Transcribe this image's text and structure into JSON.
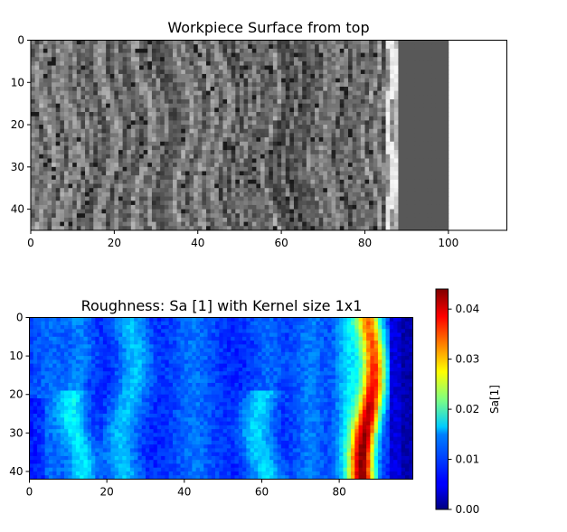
{
  "chart_data": [
    {
      "type": "heatmap",
      "title": "Workpiece Surface from top",
      "colormap": "gray",
      "xlim": [
        0,
        114
      ],
      "ylim": [
        45,
        0
      ],
      "xticks": [
        0,
        20,
        40,
        60,
        80,
        100
      ],
      "yticks": [
        0,
        10,
        20,
        30,
        40
      ],
      "image_extent_x": [
        0,
        100
      ],
      "image_extent_y": [
        0,
        45
      ],
      "bright_edge_x": [
        85,
        88
      ],
      "flat_region_x": [
        88,
        100
      ]
    },
    {
      "type": "heatmap",
      "title": "Roughness: Sa [1] with Kernel size 1x1",
      "colormap": "jet",
      "xlim": [
        0,
        99
      ],
      "ylim": [
        42,
        0
      ],
      "xticks": [
        0,
        20,
        40,
        60,
        80
      ],
      "yticks": [
        0,
        10,
        20,
        30,
        40
      ],
      "colorbar": {
        "label": "Sa[1]",
        "range": [
          0.0,
          0.044
        ],
        "ticks": [
          "0.00",
          "0.01",
          "0.02",
          "0.03",
          "0.04"
        ],
        "tick_values": [
          0.0,
          0.01,
          0.02,
          0.03,
          0.04
        ]
      }
    }
  ]
}
